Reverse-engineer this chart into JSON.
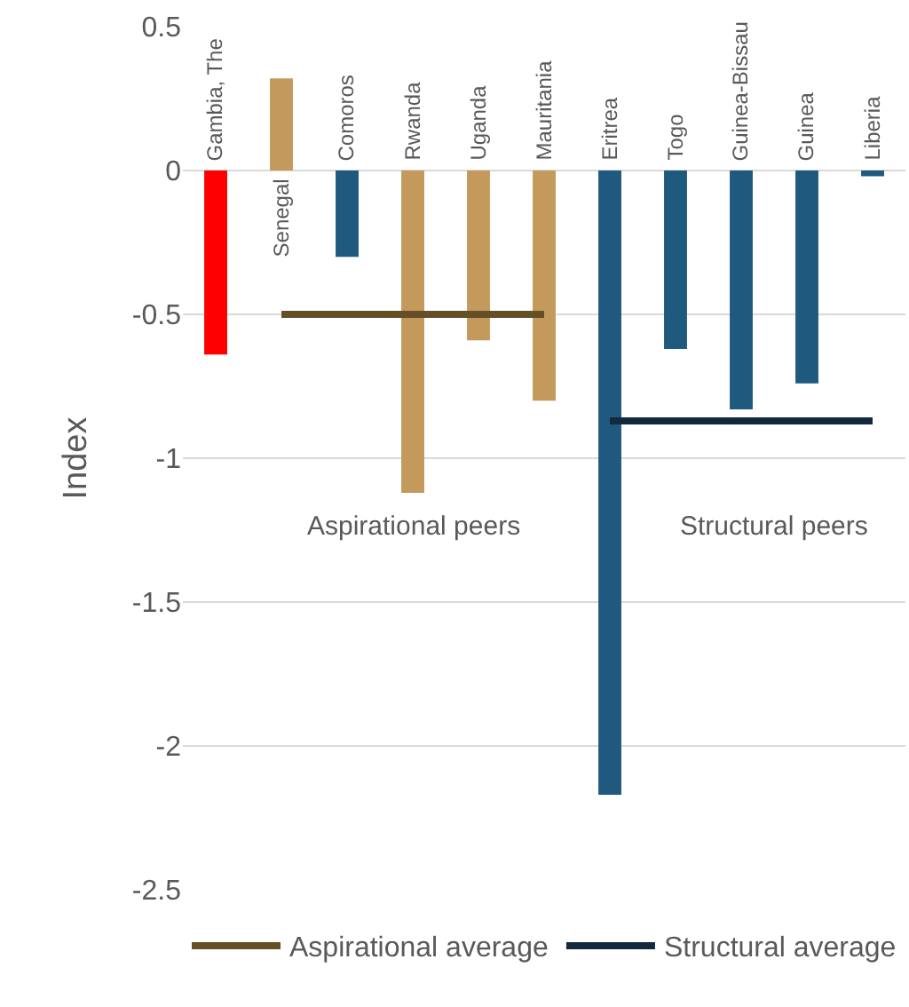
{
  "chart_data": {
    "type": "bar",
    "categories": [
      "Gambia, The",
      "Senegal",
      "Comoros",
      "Rwanda",
      "Uganda",
      "Mauritania",
      "Eritrea",
      "Togo",
      "Guinea-Bissau",
      "Guinea",
      "Liberia"
    ],
    "series": [
      {
        "values": [
          -0.64,
          0.32,
          -0.3,
          -1.12,
          -0.59,
          -0.8,
          -2.17,
          -0.62,
          -0.83,
          -0.74,
          -0.02
        ],
        "colors": [
          "#ff0000",
          "#c39a5b",
          "#1f5a7e",
          "#c39a5b",
          "#c39a5b",
          "#c39a5b",
          "#1f5a7e",
          "#1f5a7e",
          "#1f5a7e",
          "#1f5a7e",
          "#1f5a7e"
        ]
      },
      {
        "type": "line",
        "name": "Aspirational average",
        "color": "#654f26",
        "values": [
          null,
          -0.5,
          -0.5,
          -0.5,
          -0.5,
          -0.5,
          null,
          null,
          null,
          null,
          null
        ]
      },
      {
        "type": "line",
        "name": "Structural average",
        "color": "#13293d",
        "values": [
          null,
          null,
          null,
          null,
          null,
          null,
          -0.87,
          -0.87,
          -0.87,
          -0.87,
          -0.87
        ]
      }
    ],
    "annotations": [
      "Aspirational peers",
      "Structural peers"
    ],
    "ylabel": "Index",
    "ylim": [
      -2.5,
      0.5
    ],
    "yticks": [
      -2.5,
      -2,
      -1.5,
      -1,
      -0.5,
      0,
      0.5
    ],
    "grid": "y",
    "legend": "bottom",
    "line_style": "solid",
    "marker": "none"
  }
}
